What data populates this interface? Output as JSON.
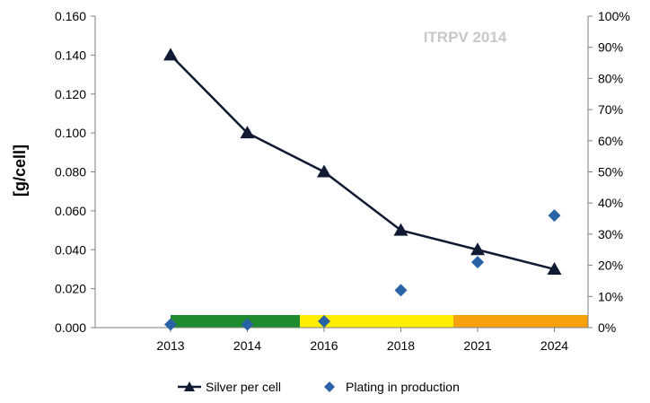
{
  "chart_data": {
    "type": "line",
    "watermark": "ITRPV 2014",
    "ylabel": "[g/cell]",
    "categories": [
      "2013",
      "2014",
      "2016",
      "2018",
      "2021",
      "2024"
    ],
    "y_left": {
      "ylim": [
        0,
        0.16
      ],
      "ticks": [
        "0.000",
        "0.020",
        "0.040",
        "0.060",
        "0.080",
        "0.100",
        "0.120",
        "0.140",
        "0.160"
      ]
    },
    "y_right": {
      "ylim": [
        0,
        100
      ],
      "ticks": [
        "0%",
        "10%",
        "20%",
        "30%",
        "40%",
        "50%",
        "60%",
        "70%",
        "80%",
        "90%",
        "100%"
      ]
    },
    "grid": false,
    "series": [
      {
        "name": "Silver per cell",
        "axis": "left",
        "type": "line",
        "marker": "triangle",
        "color": "#0f1a33",
        "values": [
          0.14,
          0.1,
          0.08,
          0.05,
          0.04,
          0.03
        ]
      },
      {
        "name": "Plating in production",
        "axis": "right",
        "type": "scatter",
        "marker": "diamond",
        "color": "#2a62a6",
        "values": [
          1,
          1,
          2,
          12,
          21,
          36
        ]
      }
    ],
    "bands": [
      {
        "from": "2013",
        "to": "2016",
        "color": "#1e8c2e"
      },
      {
        "from": "2016",
        "to": "2021",
        "color": "#ffee00"
      },
      {
        "from": "2021",
        "to": "2024",
        "color": "#f7a10c"
      }
    ],
    "legend": "bottom"
  }
}
